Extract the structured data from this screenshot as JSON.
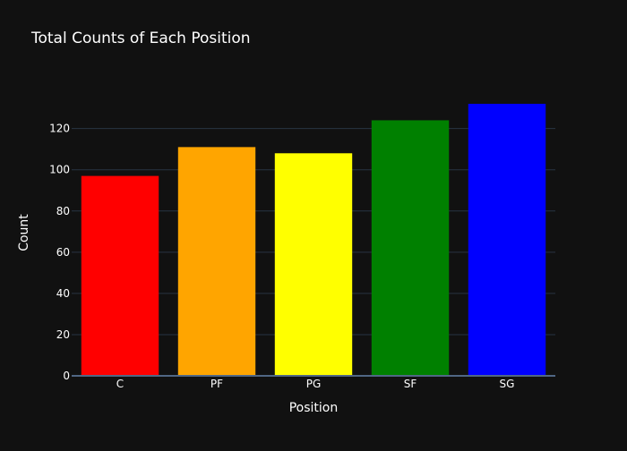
{
  "chart_data": {
    "type": "bar",
    "title": "Total Counts of Each Position",
    "xlabel": "Position",
    "ylabel": "Count",
    "categories": [
      "C",
      "PF",
      "PG",
      "SF",
      "SG"
    ],
    "values": [
      97,
      111,
      108,
      124,
      132
    ],
    "colors": [
      "#ff0000",
      "#ffa500",
      "#ffff00",
      "#008000",
      "#0000ff"
    ],
    "ylim": [
      0,
      138.95
    ],
    "yticks": [
      0,
      20,
      40,
      60,
      80,
      100,
      120
    ],
    "grid": true,
    "legend": "none",
    "background": "#111111",
    "grid_color": "#283442",
    "text_color": "#ffffff"
  }
}
